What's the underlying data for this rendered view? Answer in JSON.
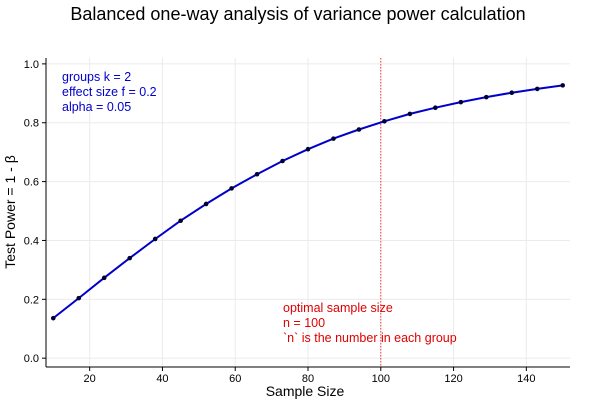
{
  "chart_data": {
    "type": "line",
    "title": "Balanced one-way analysis of variance power calculation",
    "xlabel": "Sample Size",
    "ylabel": "Test Power = 1 -  β",
    "xlim": [
      8,
      152
    ],
    "ylim": [
      -0.03,
      1.02
    ],
    "xticks": [
      20,
      40,
      60,
      80,
      100,
      120,
      140
    ],
    "yticks": [
      0.0,
      0.2,
      0.4,
      0.6,
      0.8,
      1.0
    ],
    "ytick_labels": [
      "0.0",
      "0.2",
      "0.4",
      "0.6",
      "0.8",
      "1.0"
    ],
    "grid": true,
    "series": [
      {
        "x": [
          10,
          17,
          24,
          31,
          38,
          45,
          52,
          59,
          66,
          73,
          80,
          87,
          94,
          101,
          108,
          115,
          122,
          129,
          136,
          143,
          150
        ],
        "y": [
          0.136,
          0.204,
          0.273,
          0.34,
          0.405,
          0.467,
          0.524,
          0.577,
          0.625,
          0.67,
          0.71,
          0.746,
          0.777,
          0.805,
          0.83,
          0.851,
          0.87,
          0.887,
          0.902,
          0.915,
          0.927
        ],
        "color": "#0000cc",
        "marker_color": "#000033"
      }
    ],
    "vline": {
      "x": 100,
      "color": "#ff3b3b"
    },
    "annotations": {
      "params": {
        "lines": [
          "groups k = 2",
          "effect size f = 0.2",
          "alpha = 0.05"
        ],
        "color": "#0000cc"
      },
      "optimal": {
        "lines": [
          "optimal sample size",
          "n = 100",
          "`n` is the number in each group"
        ],
        "color": "#e00000"
      }
    }
  }
}
